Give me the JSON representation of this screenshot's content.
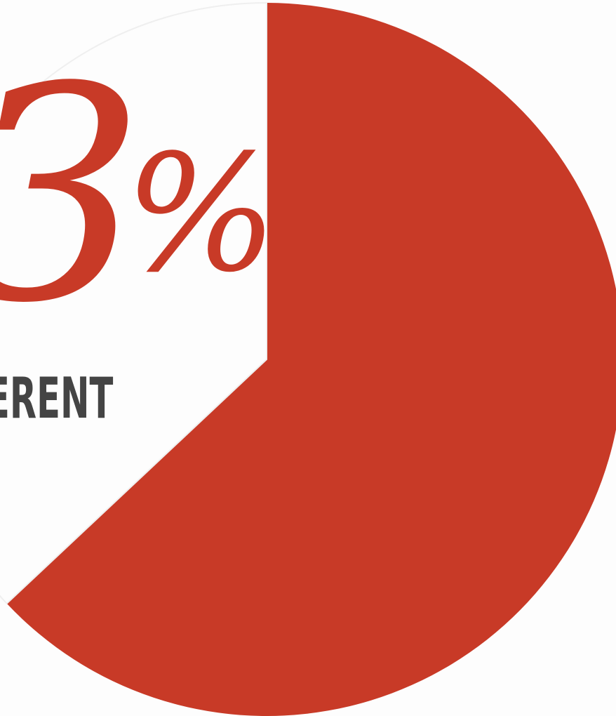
{
  "chart_data": {
    "type": "pie",
    "slices": [
      {
        "value": 63,
        "color": "#c83a27"
      },
      {
        "value": 37,
        "color": "#fdfdfd"
      }
    ]
  },
  "visible_text": {
    "big_value_digit": "3",
    "big_value_symbol": "%",
    "caption": "ERENT"
  }
}
